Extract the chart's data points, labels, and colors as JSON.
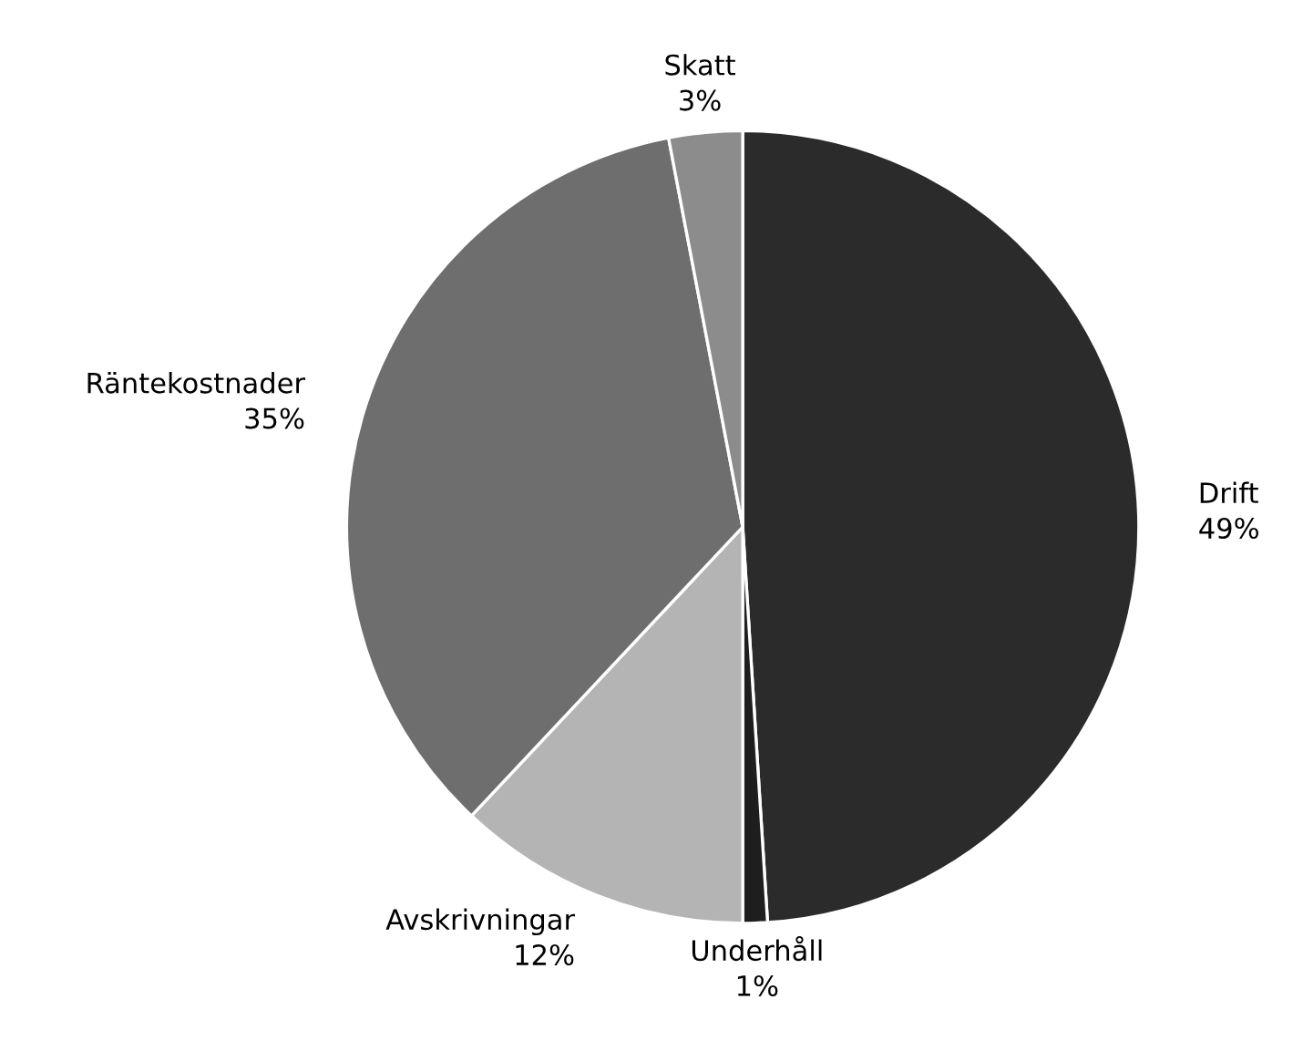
{
  "chart_data": {
    "type": "pie",
    "categories": [
      "Drift",
      "Underhåll",
      "Avskrivningar",
      "Räntekostnader",
      "Skatt"
    ],
    "values": [
      49,
      1,
      12,
      35,
      3
    ],
    "value_labels": [
      "49%",
      "1%",
      "12%",
      "35%",
      "3%"
    ],
    "colors": [
      "#2b2b2b",
      "#1e1e1e",
      "#b4b4b4",
      "#6e6e6e",
      "#8c8c8c"
    ]
  }
}
